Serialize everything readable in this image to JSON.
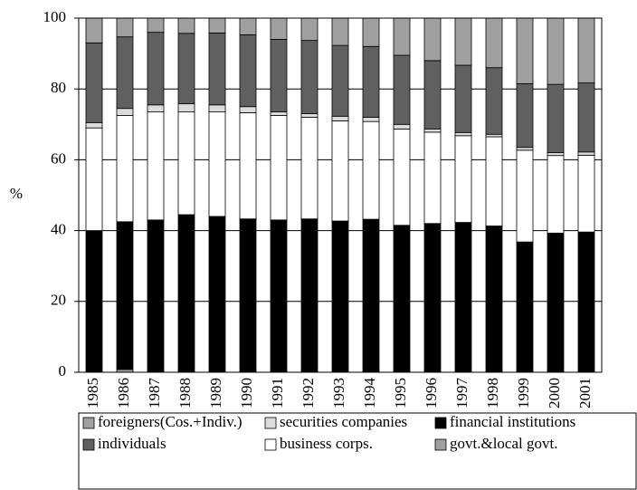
{
  "chart_data": {
    "type": "stacked_bar",
    "y_label": "%",
    "categories": [
      "1985",
      "1986",
      "1987",
      "1988",
      "1989",
      "1990",
      "1991",
      "1992",
      "1993",
      "1994",
      "1995",
      "1996",
      "1997",
      "1998",
      "1999",
      "2000",
      "2001"
    ],
    "series": [
      {
        "name": "govt.&local govt.",
        "color": "#a0a0a0",
        "values": [
          0.2,
          0.8,
          0.2,
          0.2,
          0.2,
          0.2,
          0.2,
          0.2,
          0.2,
          0.2,
          0.2,
          0.2,
          0.2,
          0.2,
          0.2,
          0.2,
          0.2
        ]
      },
      {
        "name": "financial institutions",
        "color": "#000000",
        "values": [
          39.8,
          41.7,
          42.8,
          44.3,
          43.8,
          43.1,
          42.8,
          43.1,
          42.5,
          43,
          41.3,
          41.8,
          42.1,
          41.1,
          36.6,
          39.1,
          39.4
        ]
      },
      {
        "name": "business corps.",
        "color": "#ffffff",
        "values": [
          29,
          30,
          30.5,
          29,
          29.5,
          30,
          29.5,
          28.7,
          28.3,
          27.6,
          27.2,
          25.8,
          24.5,
          25.2,
          25.9,
          21.9,
          21.7
        ]
      },
      {
        "name": "securities companies",
        "color": "#dcdcdc",
        "values": [
          1.5,
          2,
          2,
          2.3,
          2,
          1.7,
          1,
          1,
          1.3,
          1.2,
          1.3,
          0.9,
          0.9,
          0.7,
          0.8,
          0.8,
          0.9
        ]
      },
      {
        "name": "individuals",
        "color": "#606060",
        "values": [
          22.5,
          20.2,
          20.5,
          19.9,
          20.3,
          20.3,
          20.5,
          20.7,
          20,
          20,
          19.5,
          19.3,
          19,
          18.8,
          18,
          19.3,
          19.5
        ]
      },
      {
        "name": "foreigners(Cos.+Indiv.)",
        "color": "#a0a0a0",
        "values": [
          7,
          5.3,
          4,
          4.3,
          4.2,
          4.7,
          6,
          6.3,
          7.7,
          8,
          10.5,
          12,
          13.3,
          14,
          18.5,
          18.7,
          18.3
        ]
      }
    ],
    "ylim": [
      0,
      100
    ],
    "yticks": [
      0,
      20,
      40,
      60,
      80,
      100
    ],
    "grid": true
  }
}
